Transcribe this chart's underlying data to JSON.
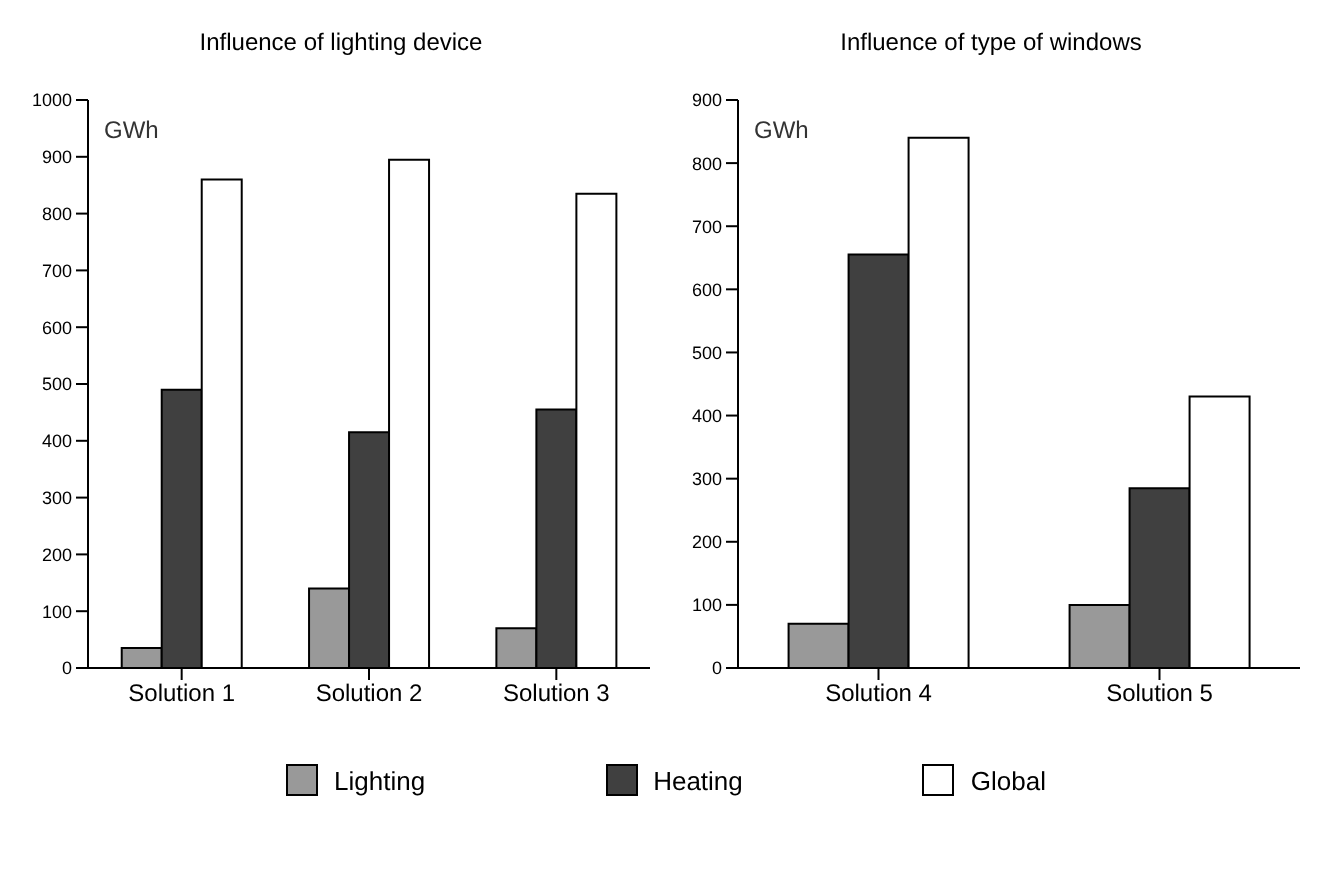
{
  "chart_data": [
    {
      "type": "bar",
      "title": "Influence of lighting device",
      "ylabel": "GWh",
      "categories": [
        "Solution 1",
        "Solution 2",
        "Solution 3"
      ],
      "series": [
        {
          "name": "Lighting",
          "color": "#999999",
          "values": [
            35,
            140,
            70
          ]
        },
        {
          "name": "Heating",
          "color": "#404040",
          "values": [
            490,
            415,
            455
          ]
        },
        {
          "name": "Global",
          "color": "#ffffff",
          "values": [
            860,
            895,
            835
          ]
        }
      ],
      "ylim": [
        0,
        1000
      ],
      "yticks": [
        0,
        100,
        200,
        300,
        400,
        500,
        600,
        700,
        800,
        900,
        1000
      ],
      "grid": false,
      "legend": "bottom"
    },
    {
      "type": "bar",
      "title": "Influence of type of windows",
      "ylabel": "GWh",
      "categories": [
        "Solution 4",
        "Solution 5"
      ],
      "series": [
        {
          "color": "#999999",
          "values": [
            70,
            100
          ]
        },
        {
          "color": "#404040",
          "values": [
            655,
            285
          ]
        },
        {
          "color": "#ffffff",
          "values": [
            840,
            430
          ]
        }
      ],
      "ylim": [
        0,
        900
      ],
      "yticks": [
        0,
        100,
        200,
        300,
        400,
        500,
        600,
        700,
        800,
        900
      ],
      "grid": false
    }
  ]
}
